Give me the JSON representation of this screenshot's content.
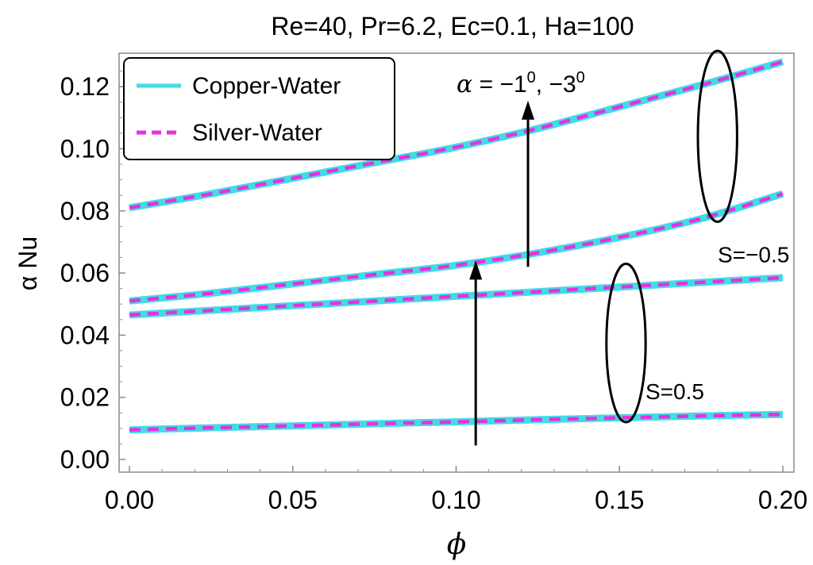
{
  "chart_data": {
    "type": "line",
    "title": "Re=40, Pr=6.2, Ec=0.1, Ha=100",
    "xlabel": "ϕ",
    "ylabel": "α Nu",
    "xlim": [
      0.0,
      0.2
    ],
    "ylim": [
      0.0,
      0.13
    ],
    "xticks": [
      0.0,
      0.05,
      0.1,
      0.15,
      0.2
    ],
    "xtick_labels": [
      "0.00",
      "0.05",
      "0.10",
      "0.15",
      "0.20"
    ],
    "yticks": [
      0.0,
      0.02,
      0.04,
      0.06,
      0.08,
      0.1,
      0.12
    ],
    "ytick_labels": [
      "0.00",
      "0.02",
      "0.04",
      "0.06",
      "0.08",
      "0.10",
      "0.12"
    ],
    "legend": {
      "placement": "top-left",
      "entries": [
        {
          "label": "Copper-Water",
          "color": "#3fdde3",
          "style": "solid"
        },
        {
          "label": "Silver-Water",
          "color": "#e82fe0",
          "style": "dashed"
        }
      ]
    },
    "x": [
      0.0,
      0.025,
      0.05,
      0.075,
      0.1,
      0.125,
      0.15,
      0.175,
      0.2
    ],
    "curves": [
      {
        "name": "S=-0.5, α=-3°",
        "values": [
          0.081,
          0.0855,
          0.0905,
          0.0955,
          0.1005,
          0.1065,
          0.1135,
          0.1205,
          0.128
        ]
      },
      {
        "name": "S=-0.5, α=-1°",
        "values": [
          0.051,
          0.0535,
          0.0565,
          0.0595,
          0.0625,
          0.0665,
          0.0715,
          0.0775,
          0.0855
        ]
      },
      {
        "name": "S=0.5, α=-3°",
        "values": [
          0.0465,
          0.048,
          0.0495,
          0.051,
          0.0525,
          0.054,
          0.0555,
          0.057,
          0.0585
        ]
      },
      {
        "name": "S=0.5, α=-1°",
        "values": [
          0.0095,
          0.0102,
          0.0108,
          0.0115,
          0.0121,
          0.0128,
          0.0134,
          0.014,
          0.0145
        ]
      }
    ],
    "annotations": [
      {
        "text": "α = −1",
        "sup": "0",
        "text2": ",  −3",
        "sup2": "0",
        "arrow_x": 0.122,
        "arrow_from": 0.062,
        "arrow_to": 0.1155
      },
      {
        "text": "S=−0.5",
        "x": 0.193,
        "y": 0.066
      },
      {
        "text": "S=0.5",
        "x": 0.165,
        "y": 0.022
      }
    ],
    "arrow2": {
      "x": 0.106,
      "from": 0.0045,
      "to": 0.064
    },
    "ellipse_top": {
      "cx": 0.18,
      "cy": 0.104,
      "rx": 0.006,
      "ry": 0.0275
    },
    "ellipse_bottom": {
      "cx": 0.152,
      "cy": 0.0375,
      "rx": 0.006,
      "ry": 0.0255
    }
  }
}
